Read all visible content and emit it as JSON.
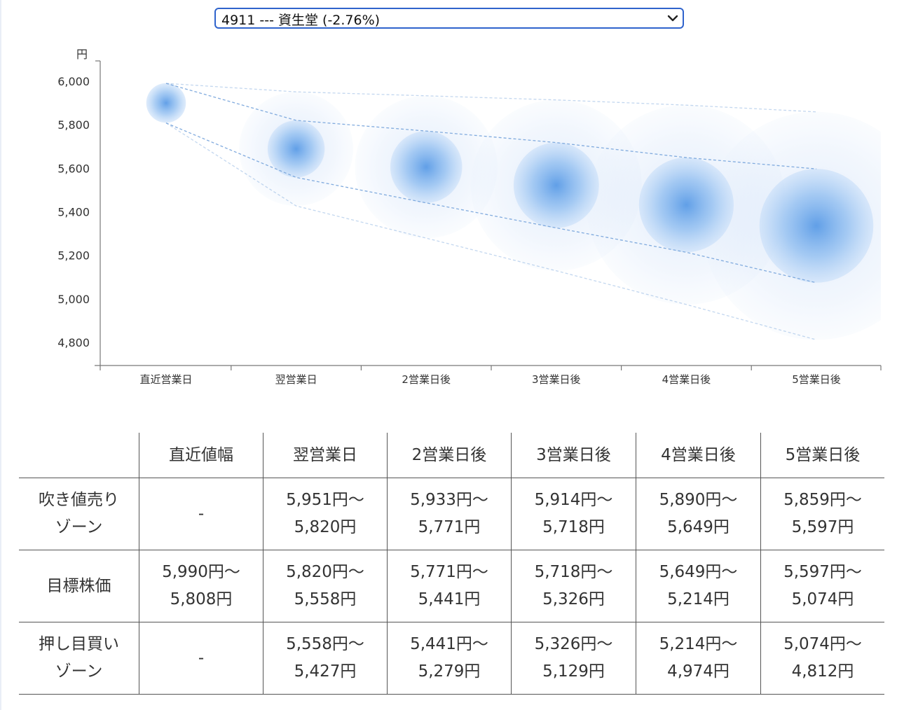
{
  "stock_select": {
    "selected": "4911 --- 資生堂 (-2.76%)"
  },
  "colors": {
    "select_border": "#2f63cc",
    "bubble": "#5a9be6",
    "dashed_line": "#7aa7dc"
  },
  "chart_data": {
    "type": "scatter",
    "y_unit": "円",
    "ylim": [
      4700,
      6130
    ],
    "y_ticks": [
      "6,000",
      "5,800",
      "5,600",
      "5,400",
      "5,200",
      "5,000",
      "4,800"
    ],
    "y_tick_values": [
      6000,
      5800,
      5600,
      5400,
      5200,
      5000,
      4800
    ],
    "categories": [
      "直近営業日",
      "翌営業日",
      "2営業日後",
      "3営業日後",
      "4営業日後",
      "5営業日後"
    ],
    "center": [
      5900,
      5689,
      5606,
      5522,
      5432,
      5336
    ],
    "inner_band": {
      "upper": [
        5990,
        5820,
        5771,
        5718,
        5649,
        5597
      ],
      "lower": [
        5808,
        5558,
        5441,
        5326,
        5214,
        5074
      ]
    },
    "outer_band": {
      "upper": [
        5990,
        5951,
        5933,
        5914,
        5890,
        5859
      ],
      "lower": [
        5808,
        5427,
        5279,
        5129,
        4974,
        4812
      ]
    },
    "grid": false,
    "legend": "none"
  },
  "table": {
    "headers": [
      "",
      "直近値幅",
      "翌営業日",
      "2営業日後",
      "3営業日後",
      "4営業日後",
      "5営業日後"
    ],
    "rows": [
      {
        "label": [
          "吹き値売り",
          "ゾーン"
        ],
        "cells": [
          [
            "-"
          ],
          [
            "5,951円〜",
            "5,820円"
          ],
          [
            "5,933円〜",
            "5,771円"
          ],
          [
            "5,914円〜",
            "5,718円"
          ],
          [
            "5,890円〜",
            "5,649円"
          ],
          [
            "5,859円〜",
            "5,597円"
          ]
        ]
      },
      {
        "label": [
          "目標株価"
        ],
        "cells": [
          [
            "5,990円〜",
            "5,808円"
          ],
          [
            "5,820円〜",
            "5,558円"
          ],
          [
            "5,771円〜",
            "5,441円"
          ],
          [
            "5,718円〜",
            "5,326円"
          ],
          [
            "5,649円〜",
            "5,214円"
          ],
          [
            "5,597円〜",
            "5,074円"
          ]
        ]
      },
      {
        "label": [
          "押し目買い",
          "ゾーン"
        ],
        "cells": [
          [
            "-"
          ],
          [
            "5,558円〜",
            "5,427円"
          ],
          [
            "5,441円〜",
            "5,279円"
          ],
          [
            "5,326円〜",
            "5,129円"
          ],
          [
            "5,214円〜",
            "4,974円"
          ],
          [
            "5,074円〜",
            "4,812円"
          ]
        ]
      }
    ]
  }
}
